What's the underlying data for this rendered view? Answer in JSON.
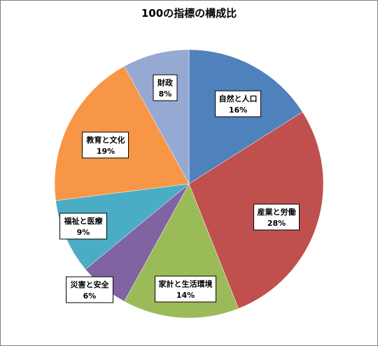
{
  "chart_data": {
    "type": "pie",
    "title": "100の指標の構成比",
    "categories": [
      "自然と人口",
      "産業と労働",
      "家計と生活環境",
      "災害と安全",
      "福祉と医療",
      "教育と文化",
      "財政"
    ],
    "values": [
      16,
      28,
      14,
      6,
      9,
      19,
      8
    ],
    "value_labels": [
      "16%",
      "28%",
      "14%",
      "6%",
      "9%",
      "19%",
      "8%"
    ],
    "colors": [
      "#4F81BD",
      "#C0504D",
      "#9BBB59",
      "#8064A2",
      "#4BACC6",
      "#F79646",
      "#95A9D3"
    ],
    "start_angle_deg": 0,
    "direction": "clockwise",
    "legend": "none"
  }
}
